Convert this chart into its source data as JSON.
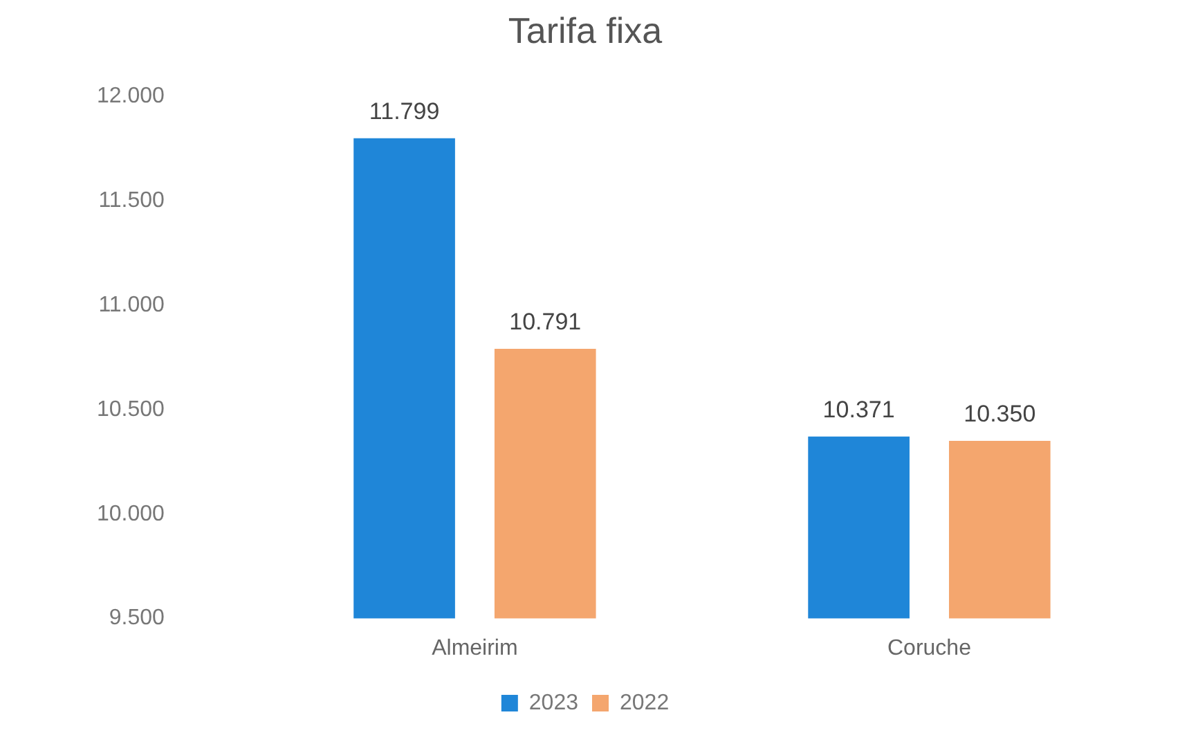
{
  "chart_data": {
    "type": "bar",
    "title": "Tarifa fixa",
    "categories": [
      "Almeirim",
      "Coruche"
    ],
    "series": [
      {
        "name": "2023",
        "color": "#1f86d8",
        "values": [
          11799,
          10371
        ],
        "value_labels": [
          "11.799",
          "10.371"
        ]
      },
      {
        "name": "2022",
        "color": "#f4a66e",
        "values": [
          10791,
          10350
        ],
        "value_labels": [
          "10.791",
          "10.350"
        ]
      }
    ],
    "ylim": [
      9500,
      12000
    ],
    "yticks": [
      {
        "value": 9500,
        "label": "9.500"
      },
      {
        "value": 10000,
        "label": "10.000"
      },
      {
        "value": 10500,
        "label": "10.500"
      },
      {
        "value": 11000,
        "label": "11.000"
      },
      {
        "value": 11500,
        "label": "11.500"
      },
      {
        "value": 12000,
        "label": "12.000"
      }
    ],
    "grid": false,
    "legend": "bottom"
  }
}
